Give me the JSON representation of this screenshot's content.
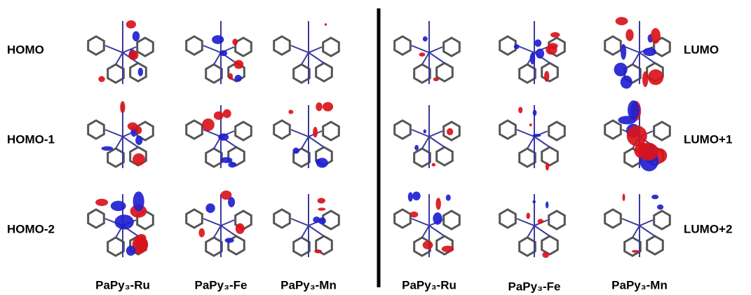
{
  "rows_left": [
    "HOMO",
    "HOMO-1",
    "HOMO-2"
  ],
  "rows_right": [
    "LUMO",
    "LUMO+1",
    "LUMO+2"
  ],
  "columns_left": [
    "PaPy₃-Ru",
    "PaPy₃-Fe",
    "PaPy₃-Mn"
  ],
  "columns_right": [
    "PaPy₃-Ru",
    "PaPy₃-Fe",
    "PaPy₃-Mn"
  ]
}
